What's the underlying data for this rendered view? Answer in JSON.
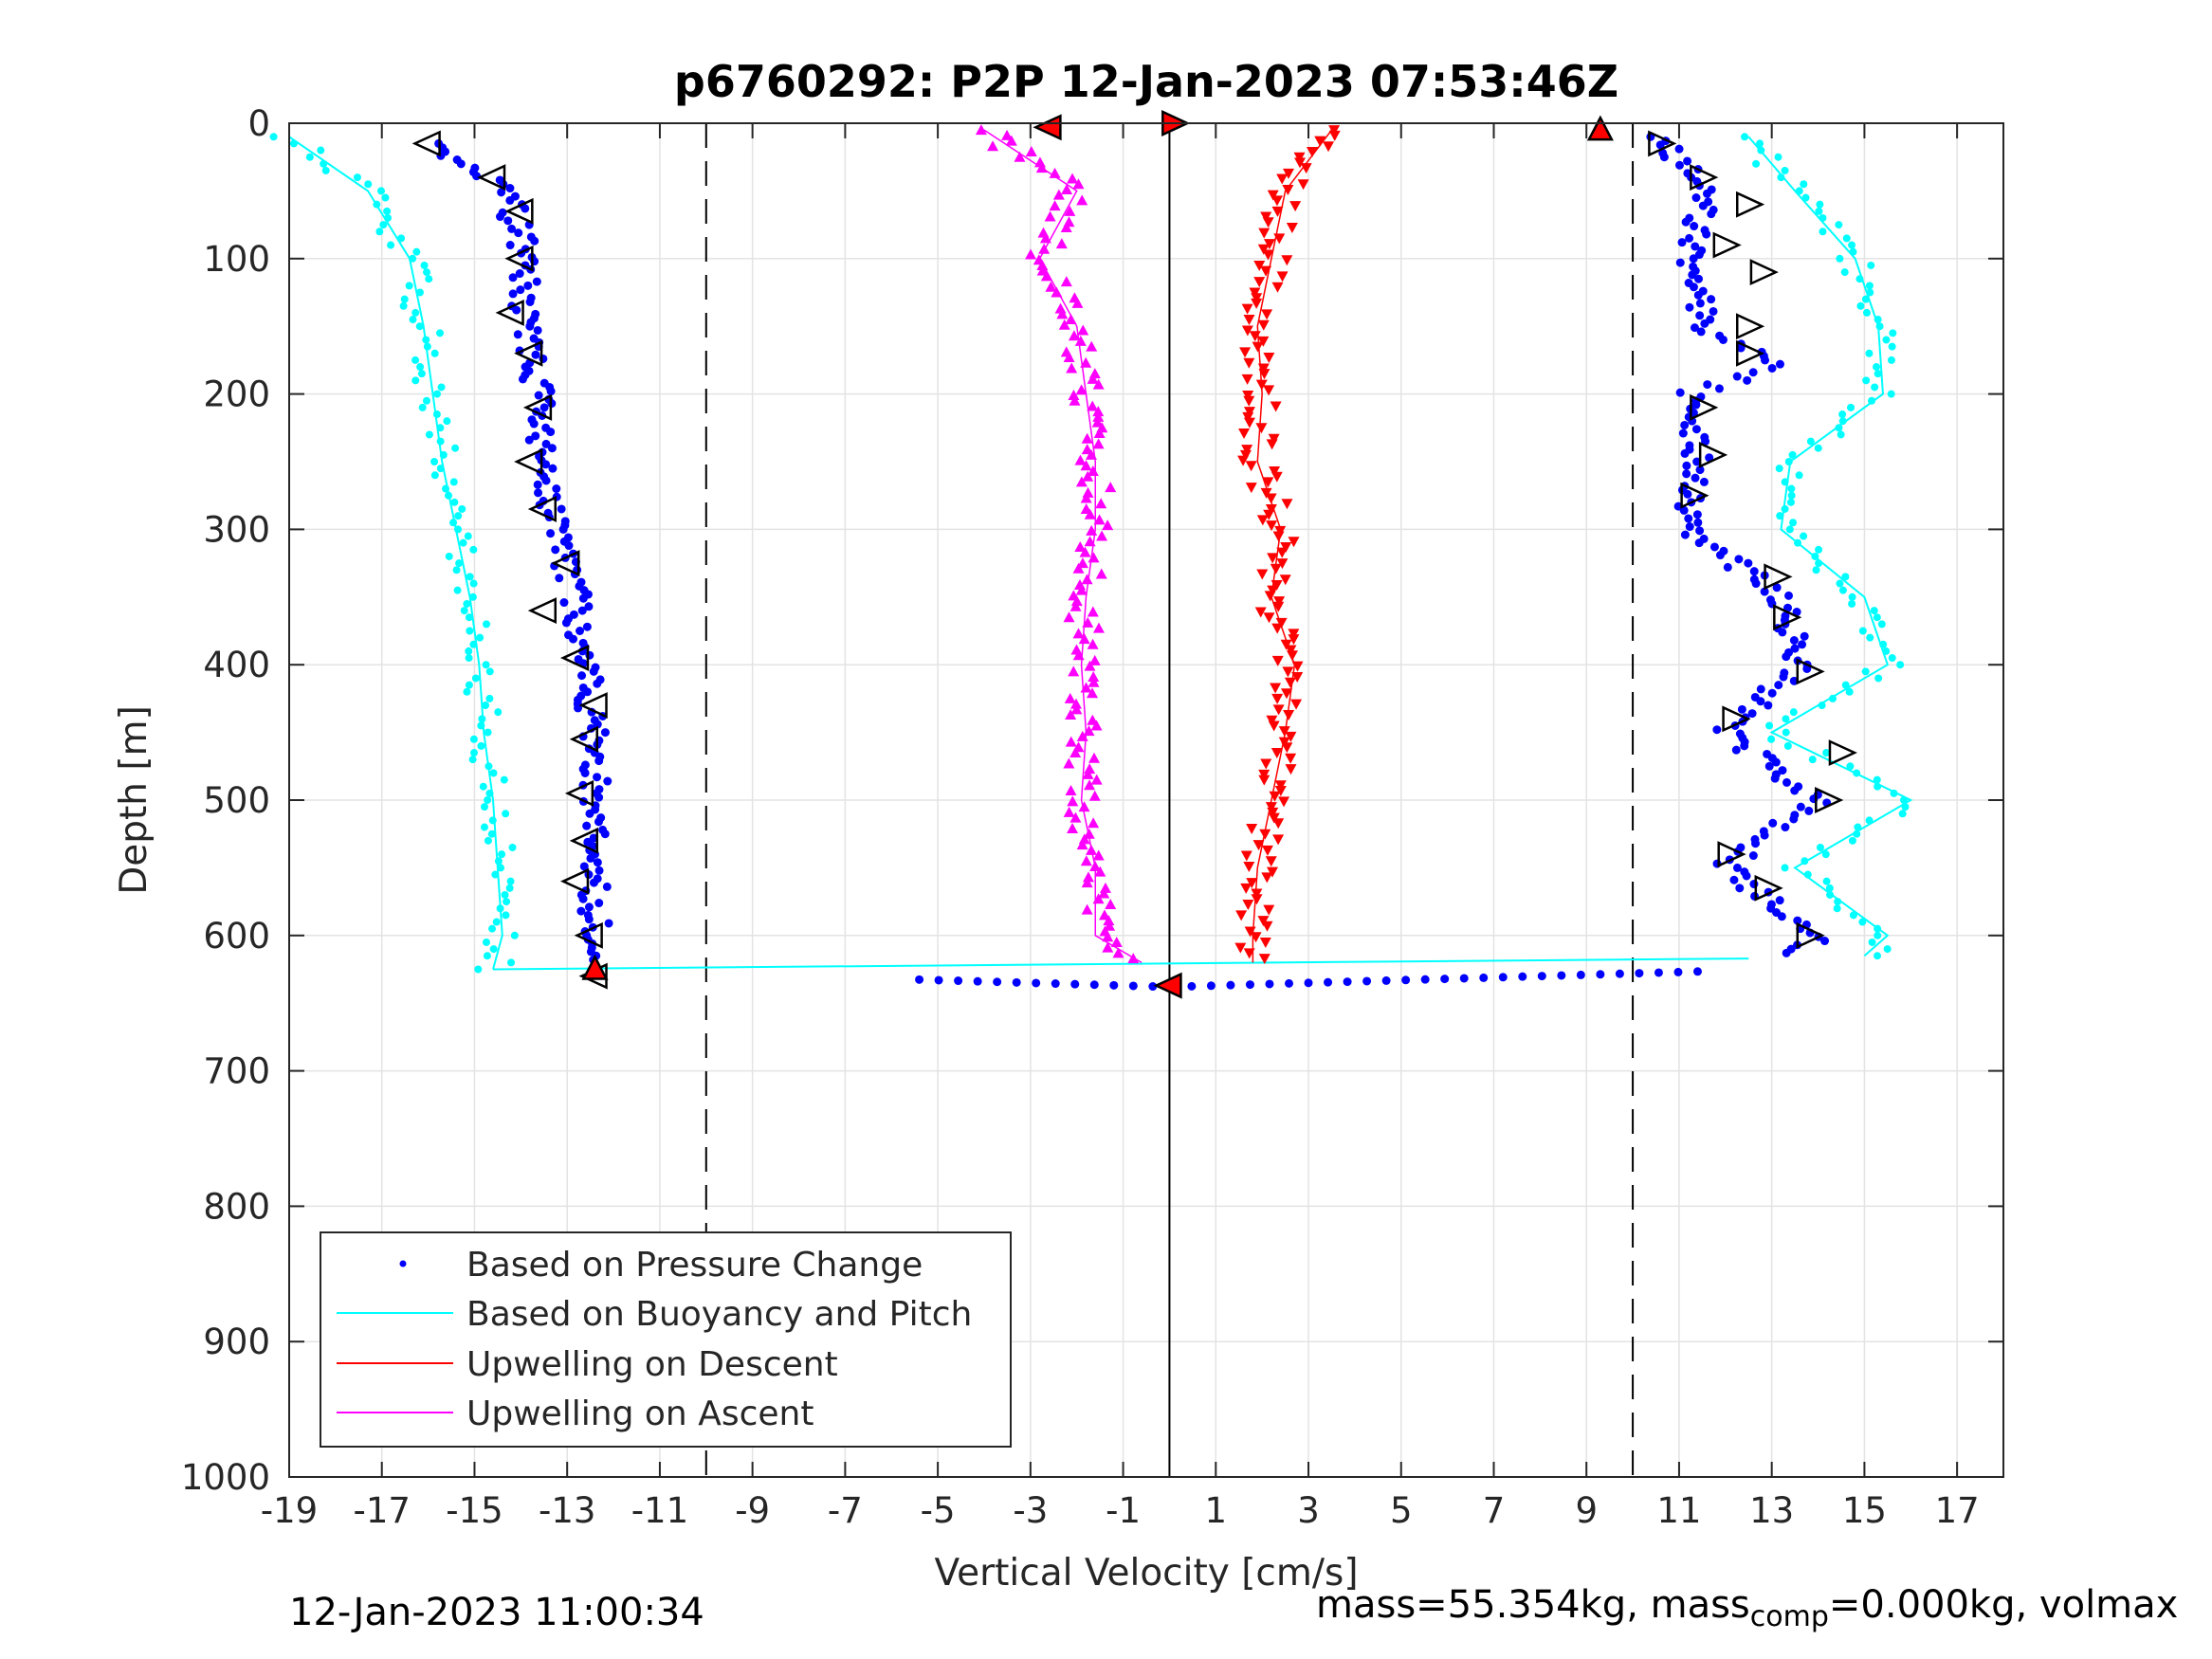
{
  "chart_data": {
    "type": "scatter",
    "title": "p6760292: P2P 12-Jan-2023 07:53:46Z",
    "xlabel": "Vertical Velocity [cm/s]",
    "ylabel": "Depth [m]",
    "xlim": [
      -19,
      18
    ],
    "ylim": [
      0,
      1000
    ],
    "y_reversed": true,
    "grid": true,
    "xticks": [
      -19,
      -17,
      -15,
      -13,
      -11,
      -9,
      -7,
      -5,
      -3,
      -1,
      1,
      3,
      5,
      7,
      9,
      11,
      13,
      15,
      17
    ],
    "yticks": [
      0,
      100,
      200,
      300,
      400,
      500,
      600,
      700,
      800,
      900,
      1000
    ],
    "vertical_lines": [
      {
        "x": -10,
        "style": "dashed"
      },
      {
        "x": 10,
        "style": "dashed"
      },
      {
        "x": 0,
        "style": "solid"
      }
    ],
    "legend_position": "bottom-left",
    "series": [
      {
        "name": "Based on Pressure Change",
        "color": "#0000ff",
        "marker": "dot",
        "profiles": [
          {
            "depth": [
              15,
              50,
              100,
              150,
              200,
              250,
              300,
              350,
              400,
              450,
              500,
              550,
              600,
              620
            ],
            "velocity": [
              -16.0,
              -14.3,
              -13.9,
              -13.9,
              -13.6,
              -13.6,
              -13.3,
              -12.8,
              -12.6,
              -12.4,
              -12.4,
              -12.4,
              -12.4,
              -12.5
            ]
          },
          {
            "depth": [
              10,
              50,
              100,
              150,
              180,
              200,
              250,
              300,
              350,
              400,
              450,
              500,
              550,
              600,
              615
            ],
            "velocity": [
              10.6,
              11.5,
              11.3,
              11.5,
              13.2,
              11.2,
              11.4,
              11.2,
              13.2,
              13.6,
              12.0,
              14.0,
              12.0,
              14.0,
              13.5
            ]
          }
        ]
      },
      {
        "name": "Based on Buoyancy and Pitch",
        "color": "#00ffff",
        "marker": "line",
        "profiles": [
          {
            "depth": [
              10,
              50,
              100,
              150,
              200,
              250,
              300,
              350,
              400,
              450,
              500,
              550,
              600,
              625
            ],
            "velocity": [
              -19.0,
              -17.3,
              -16.4,
              -16.1,
              -15.9,
              -15.7,
              -15.4,
              -15.1,
              -14.9,
              -14.8,
              -14.6,
              -14.5,
              -14.4,
              -14.6
            ]
          },
          {
            "depth": [
              10,
              50,
              100,
              150,
              200,
              250,
              300,
              350,
              400,
              450,
              500,
              550,
              600,
              615
            ],
            "velocity": [
              12.5,
              13.5,
              14.8,
              15.3,
              15.4,
              13.4,
              13.2,
              15.0,
              15.5,
              13.0,
              16.0,
              13.5,
              15.5,
              15.0
            ]
          }
        ]
      },
      {
        "name": "Upwelling on Descent",
        "color": "#ff0000",
        "marker": "triangle-down",
        "profile": {
          "depth": [
            5,
            50,
            100,
            150,
            200,
            250,
            300,
            350,
            400,
            450,
            500,
            550,
            600,
            620
          ],
          "velocity": [
            3.5,
            2.5,
            2.2,
            1.9,
            2.0,
            1.9,
            2.4,
            2.2,
            2.7,
            2.5,
            2.2,
            1.9,
            1.8,
            1.8
          ]
        }
      },
      {
        "name": "Upwelling on Ascent",
        "color": "#ff00ff",
        "marker": "triangle-up",
        "profile": {
          "depth": [
            5,
            50,
            100,
            150,
            200,
            250,
            300,
            350,
            400,
            450,
            500,
            550,
            600,
            620
          ],
          "velocity": [
            -4.0,
            -2.0,
            -2.8,
            -2.0,
            -1.8,
            -1.6,
            -1.6,
            -1.8,
            -1.9,
            -1.8,
            -1.9,
            -1.6,
            -1.6,
            -0.6
          ]
        }
      }
    ]
  },
  "footer": {
    "timestamp": "12-Jan-2023 11:00:34",
    "mass_prefix": "mass=55.354kg, mass",
    "mass_sub": "comp",
    "mass_suffix": "=0.000kg, volmax"
  }
}
